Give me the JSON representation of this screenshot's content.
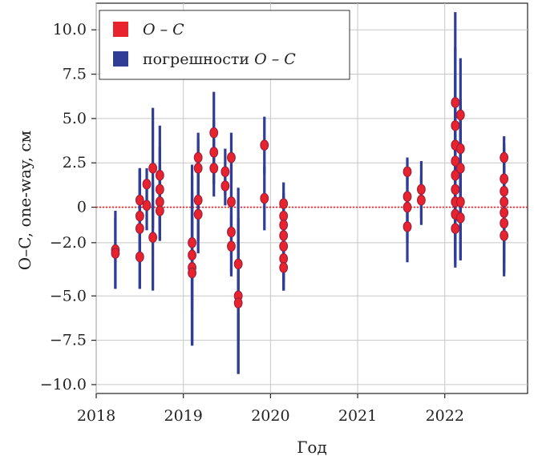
{
  "chart_data": {
    "type": "scatter",
    "title": "",
    "xlabel": "Год",
    "ylabel": "O–C, one-way, см",
    "xlim": [
      2018.0,
      2022.95
    ],
    "ylim": [
      -10.5,
      11.5
    ],
    "x_ticks": [
      2018,
      2019,
      2020,
      2021,
      2022
    ],
    "x_tick_labels": [
      "2018",
      "2019",
      "2020",
      "2021",
      "2022"
    ],
    "y_ticks": [
      10.0,
      7.5,
      5.0,
      2.5,
      0,
      -2.0,
      -5.0,
      -7.5,
      -10.0
    ],
    "y_tick_labels": [
      "10.0",
      "7.5",
      "5.0",
      "2.5",
      "0",
      "−2.0",
      "−5.0",
      "−7.5",
      "−10.0"
    ],
    "grid": true,
    "zero_line": 0,
    "legend_position": "top-left",
    "legend": [
      {
        "label_italic_a": "O – C",
        "label_plain": "",
        "label_italic_b": "",
        "kind": "marker",
        "color": "#e8232e"
      },
      {
        "label_italic_a": "",
        "label_plain": "погрешности ",
        "label_italic_b": "O – C",
        "kind": "errorbar",
        "color": "#2f3d96"
      }
    ],
    "colors": {
      "marker": "#e8232e",
      "marker_edge": "#a0203c",
      "errorbar": "#2f3d96",
      "zero_line": "#d9222a",
      "grid": "#c7c7c7"
    },
    "series": [
      {
        "name": "O – C",
        "points": [
          {
            "x": 2018.22,
            "y": -2.4,
            "err": 2.2
          },
          {
            "x": 2018.22,
            "y": -2.6,
            "err": 2.0
          },
          {
            "x": 2018.5,
            "y": 0.4,
            "err": 1.8
          },
          {
            "x": 2018.5,
            "y": -0.5,
            "err": 2.6
          },
          {
            "x": 2018.5,
            "y": -1.2,
            "err": 3.4
          },
          {
            "x": 2018.5,
            "y": -2.8,
            "err": 1.8
          },
          {
            "x": 2018.58,
            "y": 1.3,
            "err": 0.9
          },
          {
            "x": 2018.58,
            "y": 0.1,
            "err": 1.4
          },
          {
            "x": 2018.65,
            "y": 2.2,
            "err": 3.4
          },
          {
            "x": 2018.65,
            "y": -1.7,
            "err": 3.0
          },
          {
            "x": 2018.73,
            "y": 1.8,
            "err": 2.8
          },
          {
            "x": 2018.73,
            "y": 1.0,
            "err": 2.4
          },
          {
            "x": 2018.73,
            "y": 0.3,
            "err": 2.1
          },
          {
            "x": 2018.73,
            "y": -0.2,
            "err": 1.7
          },
          {
            "x": 2019.1,
            "y": -2.0,
            "err": 3.8
          },
          {
            "x": 2019.1,
            "y": -2.7,
            "err": 5.1
          },
          {
            "x": 2019.1,
            "y": -3.4,
            "err": 4.3
          },
          {
            "x": 2019.1,
            "y": -3.7,
            "err": 4.1
          },
          {
            "x": 2019.17,
            "y": 2.8,
            "err": 1.4
          },
          {
            "x": 2019.17,
            "y": 2.2,
            "err": 1.6
          },
          {
            "x": 2019.17,
            "y": 0.4,
            "err": 2.3
          },
          {
            "x": 2019.17,
            "y": -0.4,
            "err": 2.2
          },
          {
            "x": 2019.35,
            "y": 4.2,
            "err": 2.3
          },
          {
            "x": 2019.35,
            "y": 3.1,
            "err": 1.8
          },
          {
            "x": 2019.35,
            "y": 2.2,
            "err": 1.6
          },
          {
            "x": 2019.48,
            "y": 2.0,
            "err": 1.3
          },
          {
            "x": 2019.48,
            "y": 1.2,
            "err": 1.1
          },
          {
            "x": 2019.55,
            "y": 2.8,
            "err": 1.4
          },
          {
            "x": 2019.55,
            "y": 0.3,
            "err": 2.1
          },
          {
            "x": 2019.55,
            "y": -1.4,
            "err": 2.3
          },
          {
            "x": 2019.55,
            "y": -2.2,
            "err": 1.7
          },
          {
            "x": 2019.63,
            "y": -3.2,
            "err": 4.3
          },
          {
            "x": 2019.63,
            "y": -5.0,
            "err": 4.4
          },
          {
            "x": 2019.63,
            "y": -5.4,
            "err": 4.0
          },
          {
            "x": 2019.93,
            "y": 3.5,
            "err": 1.6
          },
          {
            "x": 2019.93,
            "y": 0.5,
            "err": 1.8
          },
          {
            "x": 2020.15,
            "y": 0.2,
            "err": 1.2
          },
          {
            "x": 2020.15,
            "y": -0.5,
            "err": 1.3
          },
          {
            "x": 2020.15,
            "y": -1.0,
            "err": 1.6
          },
          {
            "x": 2020.15,
            "y": -1.6,
            "err": 1.7
          },
          {
            "x": 2020.15,
            "y": -2.2,
            "err": 2.0
          },
          {
            "x": 2020.15,
            "y": -2.9,
            "err": 1.8
          },
          {
            "x": 2020.15,
            "y": -3.4,
            "err": 1.3
          },
          {
            "x": 2021.57,
            "y": 2.0,
            "err": 0.8
          },
          {
            "x": 2021.57,
            "y": 0.6,
            "err": 1.5
          },
          {
            "x": 2021.57,
            "y": 0.0,
            "err": 2.0
          },
          {
            "x": 2021.57,
            "y": -1.1,
            "err": 2.0
          },
          {
            "x": 2021.73,
            "y": 1.0,
            "err": 1.6
          },
          {
            "x": 2021.73,
            "y": 0.4,
            "err": 1.4
          },
          {
            "x": 2022.12,
            "y": 5.9,
            "err": 5.1
          },
          {
            "x": 2022.12,
            "y": 4.6,
            "err": 4.4
          },
          {
            "x": 2022.12,
            "y": 3.5,
            "err": 3.9
          },
          {
            "x": 2022.12,
            "y": 2.6,
            "err": 3.7
          },
          {
            "x": 2022.12,
            "y": 1.8,
            "err": 3.6
          },
          {
            "x": 2022.12,
            "y": 1.0,
            "err": 3.4
          },
          {
            "x": 2022.12,
            "y": 0.3,
            "err": 3.3
          },
          {
            "x": 2022.12,
            "y": -0.4,
            "err": 3.0
          },
          {
            "x": 2022.12,
            "y": -1.2,
            "err": 2.0
          },
          {
            "x": 2022.18,
            "y": 5.2,
            "err": 3.2
          },
          {
            "x": 2022.18,
            "y": 3.3,
            "err": 2.8
          },
          {
            "x": 2022.18,
            "y": 2.2,
            "err": 3.5
          },
          {
            "x": 2022.18,
            "y": 0.3,
            "err": 3.2
          },
          {
            "x": 2022.18,
            "y": -0.6,
            "err": 2.4
          },
          {
            "x": 2022.68,
            "y": 2.8,
            "err": 1.2
          },
          {
            "x": 2022.68,
            "y": 1.6,
            "err": 2.0
          },
          {
            "x": 2022.68,
            "y": 0.9,
            "err": 2.4
          },
          {
            "x": 2022.68,
            "y": 0.3,
            "err": 2.6
          },
          {
            "x": 2022.68,
            "y": -0.3,
            "err": 2.8
          },
          {
            "x": 2022.68,
            "y": -0.9,
            "err": 2.8
          },
          {
            "x": 2022.68,
            "y": -1.6,
            "err": 2.3
          }
        ]
      }
    ]
  }
}
